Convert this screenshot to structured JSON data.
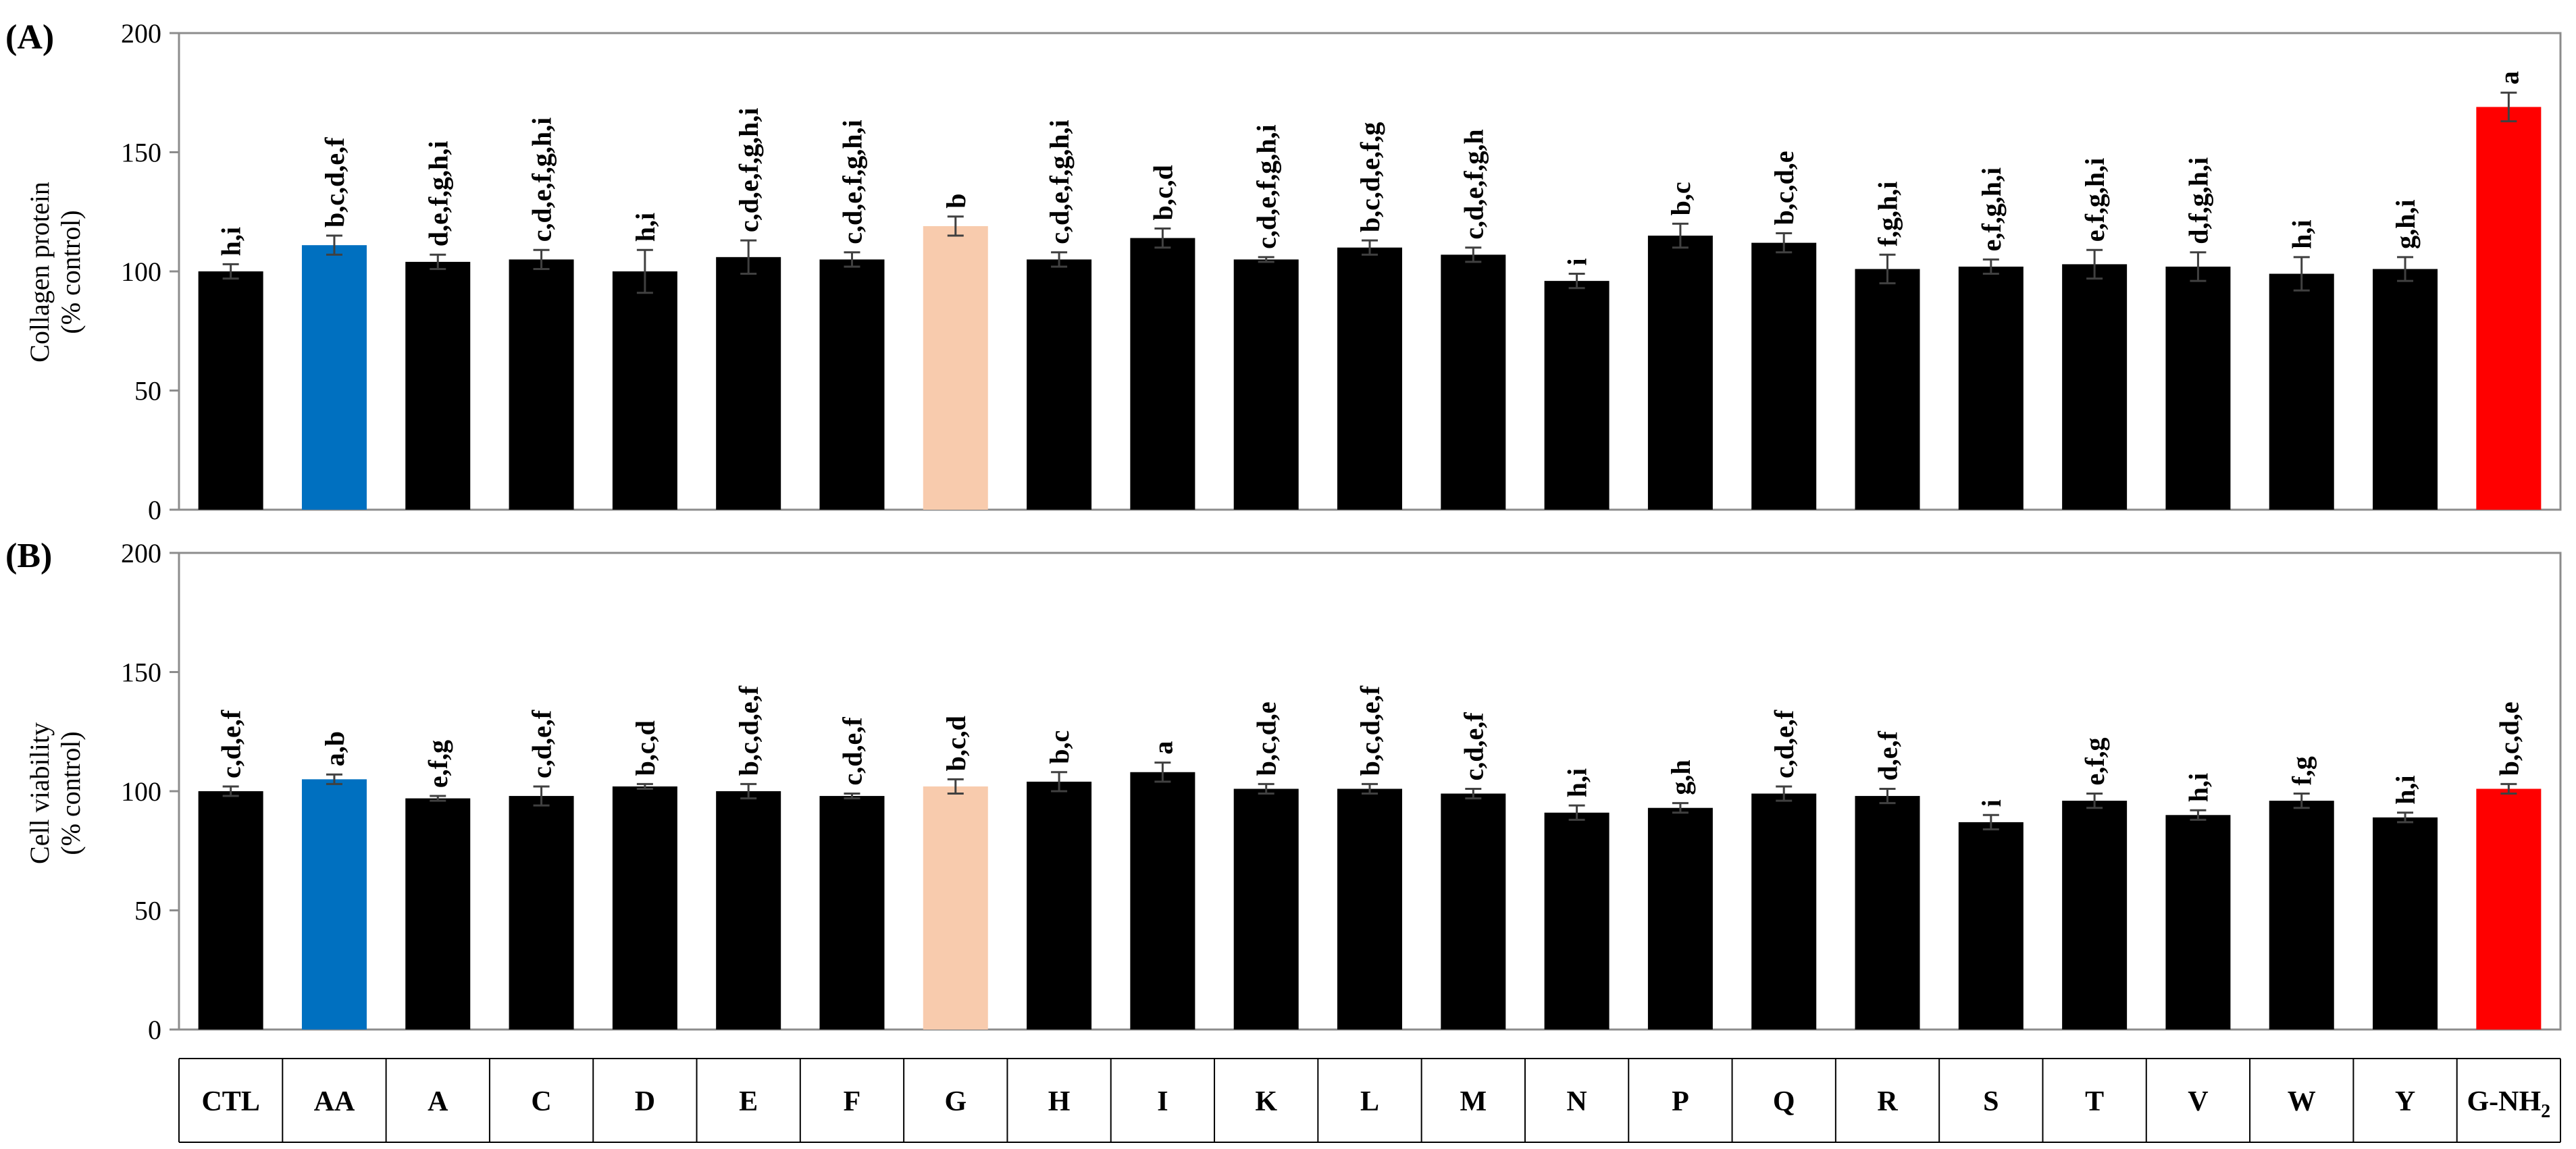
{
  "panels": [
    {
      "panel_label": "(A)",
      "ylabel_line1": "Collagen protein",
      "ylabel_line2": "(% control)"
    },
    {
      "panel_label": "(B)",
      "ylabel_line1": "Cell viability",
      "ylabel_line2": "(% control)"
    }
  ],
  "x_categories": [
    "CTL",
    "AA",
    "A",
    "C",
    "D",
    "E",
    "F",
    "G",
    "H",
    "I",
    "K",
    "L",
    "M",
    "N",
    "P",
    "Q",
    "R",
    "S",
    "T",
    "V",
    "W",
    "Y",
    "G-NH2"
  ],
  "last_category_display": {
    "base": "G-NH",
    "subscript": "2"
  },
  "colors": {
    "default_bar": "#000000",
    "AA": "#0070c0",
    "G": "#f8cbad",
    "G-NH2": "#ff0000"
  },
  "chart_data": [
    {
      "type": "bar",
      "categories": [
        "CTL",
        "AA",
        "A",
        "C",
        "D",
        "E",
        "F",
        "G",
        "H",
        "I",
        "K",
        "L",
        "M",
        "N",
        "P",
        "Q",
        "R",
        "S",
        "T",
        "V",
        "W",
        "Y",
        "G-NH2"
      ],
      "values": [
        100,
        111,
        104,
        105,
        100,
        106,
        105,
        119,
        105,
        114,
        105,
        110,
        107,
        96,
        115,
        112,
        101,
        102,
        103,
        102,
        99,
        101,
        169
      ],
      "errors": [
        3,
        4,
        3,
        4,
        9,
        7,
        3,
        4,
        3,
        4,
        1,
        3,
        3,
        3,
        5,
        4,
        6,
        3,
        6,
        6,
        7,
        5,
        6
      ],
      "labels": [
        "h,i",
        "b,c,d,e,f",
        "d,e,f,g,h,i",
        "c,d,e,f,g,h,i",
        "h,i",
        "c,d,e,f,g,h,i",
        "c,d,e,f,g,h,i",
        "b",
        "c,d,e,f,g,h,i",
        "b,c,d",
        "c,d,e,f,g,h,i",
        "b,c,d,e,f,g",
        "c,d,e,f,g,h",
        "i",
        "b,c",
        "b,c,d,e",
        "f,g,h,i",
        "e,f,g,h,i",
        "e,f,g,h,i",
        "d,f,g,h,i",
        "h,i",
        "g,h,i",
        "a"
      ],
      "ylabel": "Collagen protein (% control)",
      "ylim": [
        0,
        200
      ],
      "yticks": [
        0,
        50,
        100,
        150,
        200
      ],
      "grid": false
    },
    {
      "type": "bar",
      "categories": [
        "CTL",
        "AA",
        "A",
        "C",
        "D",
        "E",
        "F",
        "G",
        "H",
        "I",
        "K",
        "L",
        "M",
        "N",
        "P",
        "Q",
        "R",
        "S",
        "T",
        "V",
        "W",
        "Y",
        "G-NH2"
      ],
      "values": [
        100,
        105,
        97,
        98,
        102,
        100,
        98,
        102,
        104,
        108,
        101,
        101,
        99,
        91,
        93,
        99,
        98,
        87,
        96,
        90,
        96,
        89,
        101
      ],
      "errors": [
        2,
        2,
        1,
        4,
        1,
        3,
        1,
        3,
        4,
        4,
        2,
        2,
        2,
        3,
        2,
        3,
        3,
        3,
        3,
        2,
        3,
        2,
        2
      ],
      "labels": [
        "c,d,e,f",
        "a,b",
        "e,f,g",
        "c,d,e,f",
        "b,c,d",
        "b,c,d,e,f",
        "c,d,e,f",
        "b,c,d",
        "b,c",
        "a",
        "b,c,d,e",
        "b,c,d,e,f",
        "c,d,e,f",
        "h,i",
        "g,h",
        "c,d,e,f",
        "d,e,f",
        "i",
        "e,f,g",
        "h,i",
        "f,g",
        "h,i",
        "b,c,d,e"
      ],
      "ylabel": "Cell viability (% control)",
      "ylim": [
        0,
        200
      ],
      "yticks": [
        0,
        50,
        100,
        150,
        200
      ],
      "grid": false
    }
  ]
}
